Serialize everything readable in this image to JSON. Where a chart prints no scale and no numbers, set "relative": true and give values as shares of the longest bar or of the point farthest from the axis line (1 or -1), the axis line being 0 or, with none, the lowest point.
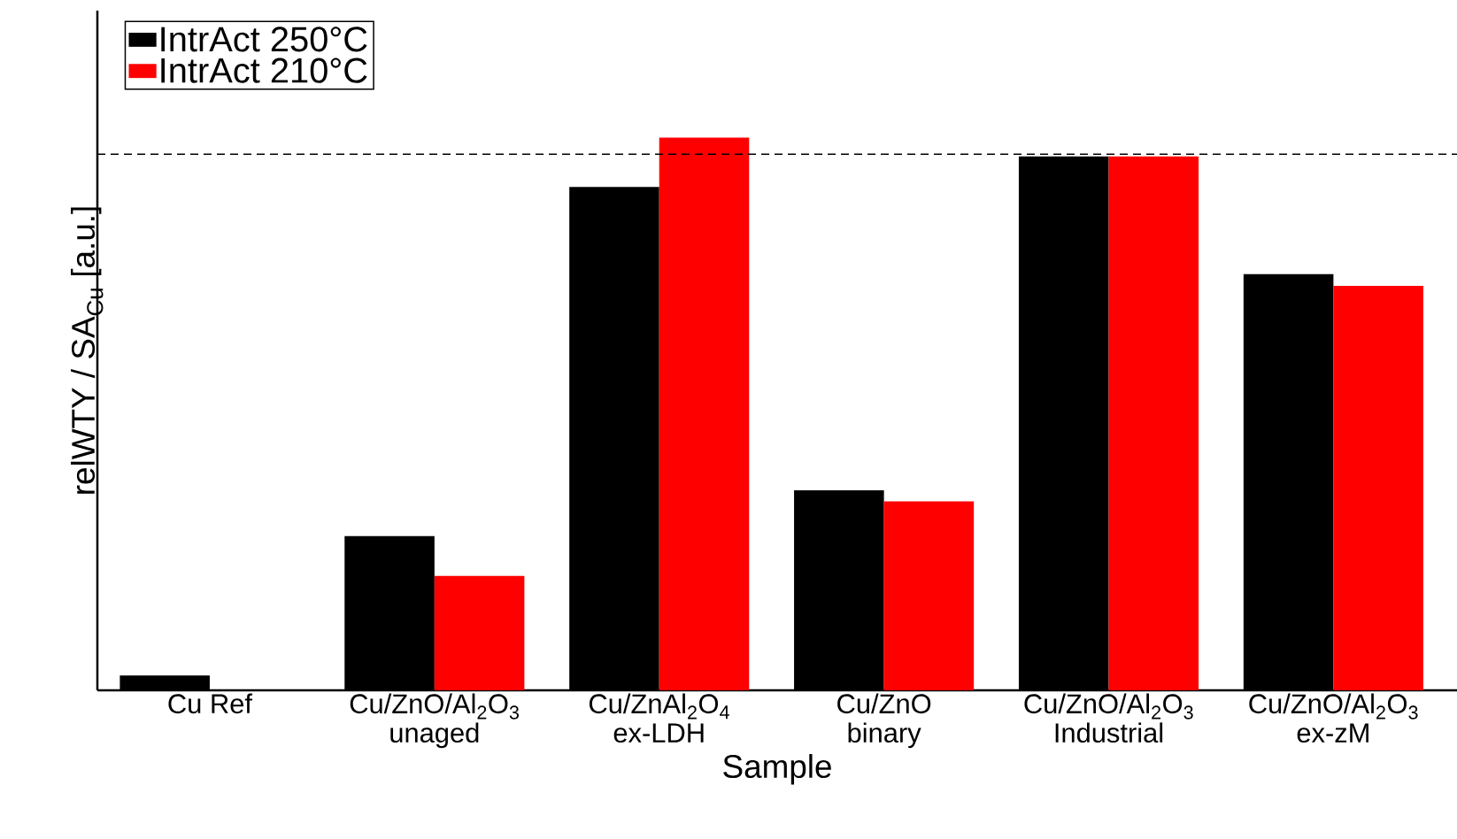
{
  "chart_data": {
    "type": "bar",
    "relative": true,
    "xlabel": "Sample",
    "ylabel": "relWTY / SA$_{Cu}$ [a.u.]",
    "categories": [
      "Cu Ref",
      "Cu/ZnO/Al$_{2}$O$_{3}$\nunaged",
      "Cu/ZnAl$_{2}$O$_{4}$\nex-LDH",
      "Cu/ZnO\nbinary",
      "Cu/ZnO/Al$_{2}$O$_{3}$\nIndustrial",
      "Cu/ZnO/Al$_{2}$O$_{3}$\nex-zM"
    ],
    "series": [
      {
        "name": "IntrAct 250°C",
        "color": "#000000",
        "values": [
          0.027,
          0.279,
          0.911,
          0.362,
          0.966,
          0.753
        ]
      },
      {
        "name": "IntrAct 210°C",
        "color": "#ff0000",
        "values": [
          null,
          0.207,
          1,
          0.342,
          0.966,
          0.732
        ]
      }
    ],
    "ref_lines": [
      {
        "axis": "y",
        "value": 0.97,
        "color": "#000000",
        "line_style": "dashed"
      }
    ],
    "legend": "top left"
  }
}
